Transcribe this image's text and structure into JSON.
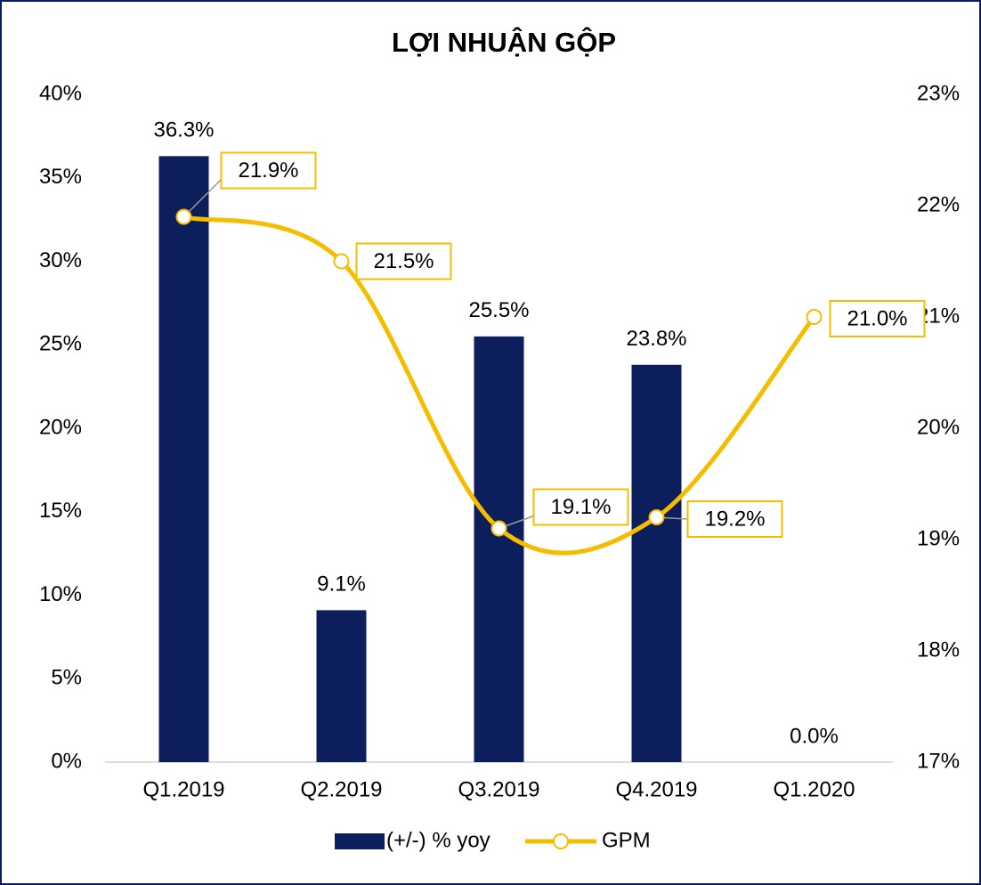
{
  "chart_data": {
    "type": "bar",
    "title": "LỢI NHUẬN GỘP",
    "categories": [
      "Q1.2019",
      "Q2.2019",
      "Q3.2019",
      "Q4.2019",
      "Q1.2020"
    ],
    "series": [
      {
        "name": "(+/-) % yoy",
        "type": "bar",
        "color": "#0c1f5c",
        "values": [
          36.3,
          9.1,
          25.5,
          23.8,
          0.0
        ],
        "value_labels": [
          "36.3%",
          "9.1%",
          "25.5%",
          "23.8%",
          "0.0%"
        ]
      },
      {
        "name": "GPM",
        "type": "line",
        "axis": "y2",
        "color": "#f5bd00",
        "values": [
          21.9,
          21.5,
          19.1,
          19.2,
          21.0
        ],
        "value_labels": [
          "21.9%",
          "21.5%",
          "19.1%",
          "19.2%",
          "21.0%"
        ]
      }
    ],
    "ylim": [
      0,
      40
    ],
    "yticks": [
      {
        "value": 0,
        "label": "0%"
      },
      {
        "value": 5,
        "label": "5%"
      },
      {
        "value": 10,
        "label": "10%"
      },
      {
        "value": 15,
        "label": "15%"
      },
      {
        "value": 20,
        "label": "20%"
      },
      {
        "value": 25,
        "label": "25%"
      },
      {
        "value": 30,
        "label": "30%"
      },
      {
        "value": 35,
        "label": "35%"
      },
      {
        "value": 40,
        "label": "40%"
      }
    ],
    "y2lim": [
      17,
      23
    ],
    "y2ticks": [
      {
        "value": 17,
        "label": "17%"
      },
      {
        "value": 18,
        "label": "18%"
      },
      {
        "value": 19,
        "label": "19%"
      },
      {
        "value": 20,
        "label": "20%"
      },
      {
        "value": 21,
        "label": "21%"
      },
      {
        "value": 22,
        "label": "22%"
      },
      {
        "value": 23,
        "label": "23%"
      }
    ],
    "grid": false,
    "legend": "bottom"
  }
}
